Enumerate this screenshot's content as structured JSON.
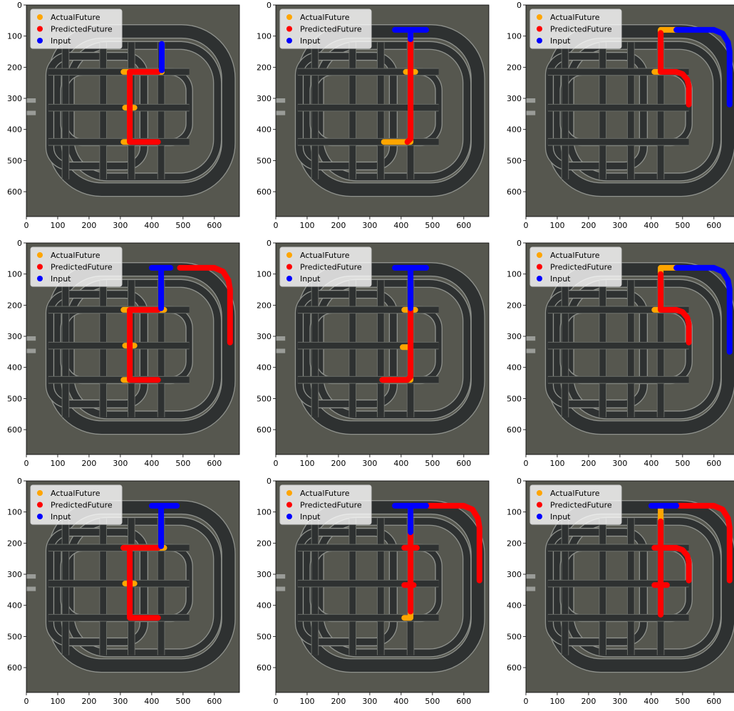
{
  "chart_data": [
    {
      "type": "line",
      "legend": "upper left",
      "xlim": [
        0,
        680
      ],
      "ylim": [
        680,
        0
      ],
      "xticks": [
        0,
        100,
        200,
        300,
        400,
        500,
        600
      ],
      "yticks": [
        0,
        100,
        200,
        300,
        400,
        500,
        600
      ],
      "series": [
        {
          "name": "ActualFuture",
          "color": "#ffa500",
          "x": [
            432,
            310,
            null,
            330,
            330,
            310,
            null,
            315,
            345
          ],
          "y": [
            215,
            215,
            null,
            215,
            440,
            440,
            null,
            330,
            330
          ]
        },
        {
          "name": "PredictedFuture",
          "color": "#ff0000",
          "x": [
            420,
            330,
            330,
            420
          ],
          "y": [
            215,
            215,
            440,
            440
          ]
        },
        {
          "name": "Input",
          "color": "#0000ff",
          "x": [
            432,
            432
          ],
          "y": [
            125,
            210
          ]
        }
      ]
    },
    {
      "type": "line",
      "legend": "upper left",
      "xlim": [
        0,
        680
      ],
      "ylim": [
        680,
        0
      ],
      "xticks": [
        0,
        100,
        200,
        300,
        400,
        500,
        600
      ],
      "yticks": [
        0,
        100,
        200,
        300,
        400,
        500,
        600
      ],
      "series": [
        {
          "name": "ActualFuture",
          "color": "#ffa500",
          "x": [
            430,
            430,
            345,
            null,
            415,
            445
          ],
          "y": [
            80,
            440,
            440,
            null,
            215,
            215
          ]
        },
        {
          "name": "PredictedFuture",
          "color": "#ff0000",
          "x": [
            430,
            430,
            420
          ],
          "y": [
            110,
            430,
            440
          ]
        },
        {
          "name": "Input",
          "color": "#0000ff",
          "x": [
            380,
            480,
            null,
            430,
            430
          ],
          "y": [
            80,
            80,
            null,
            80,
            110
          ]
        }
      ]
    },
    {
      "type": "line",
      "legend": "upper left",
      "xlim": [
        0,
        680
      ],
      "ylim": [
        680,
        0
      ],
      "xticks": [
        0,
        100,
        200,
        300,
        400,
        500,
        600
      ],
      "yticks": [
        0,
        100,
        200,
        300,
        400,
        500,
        600
      ],
      "series": [
        {
          "name": "ActualFuture",
          "color": "#ffa500",
          "x": [
            430,
            480,
            null,
            430,
            430,
            410
          ],
          "y": [
            80,
            80,
            null,
            80,
            215,
            215
          ]
        },
        {
          "name": "PredictedFuture",
          "color": "#ff0000",
          "x": [
            430,
            430,
            480,
            500,
            515,
            520,
            520
          ],
          "y": [
            90,
            215,
            215,
            222,
            240,
            260,
            320
          ]
        },
        {
          "name": "Input",
          "color": "#0000ff",
          "x": [
            480,
            600,
            628,
            645,
            650,
            650
          ],
          "y": [
            80,
            80,
            92,
            120,
            150,
            320
          ]
        }
      ]
    },
    {
      "type": "line",
      "legend": "upper left",
      "xlim": [
        0,
        680
      ],
      "ylim": [
        680,
        0
      ],
      "xticks": [
        0,
        100,
        200,
        300,
        400,
        500,
        600
      ],
      "yticks": [
        0,
        100,
        200,
        300,
        400,
        500,
        600
      ],
      "series": [
        {
          "name": "ActualFuture",
          "color": "#ffa500",
          "x": [
            440,
            310,
            null,
            330,
            330,
            310,
            null,
            315,
            345
          ],
          "y": [
            215,
            215,
            null,
            215,
            440,
            440,
            null,
            330,
            330
          ]
        },
        {
          "name": "PredictedFuture",
          "color": "#ff0000",
          "x": [
            490,
            600,
            628,
            645,
            650,
            650,
            null,
            420,
            330,
            330,
            420
          ],
          "y": [
            80,
            80,
            92,
            120,
            150,
            320,
            null,
            215,
            215,
            440,
            440
          ]
        },
        {
          "name": "Input",
          "color": "#0000ff",
          "x": [
            400,
            460,
            null,
            430,
            430
          ],
          "y": [
            80,
            80,
            null,
            80,
            210
          ]
        }
      ]
    },
    {
      "type": "line",
      "legend": "upper left",
      "xlim": [
        0,
        680
      ],
      "ylim": [
        680,
        0
      ],
      "xticks": [
        0,
        100,
        200,
        300,
        400,
        500,
        600
      ],
      "yticks": [
        0,
        100,
        200,
        300,
        400,
        500,
        600
      ],
      "series": [
        {
          "name": "ActualFuture",
          "color": "#ffa500",
          "x": [
            430,
            430,
            340,
            null,
            410,
            445,
            null,
            405,
            420
          ],
          "y": [
            215,
            440,
            440,
            null,
            215,
            215,
            null,
            335,
            335
          ]
        },
        {
          "name": "PredictedFuture",
          "color": "#ff0000",
          "x": [
            430,
            430,
            420,
            340
          ],
          "y": [
            215,
            430,
            440,
            440
          ]
        },
        {
          "name": "Input",
          "color": "#0000ff",
          "x": [
            380,
            480,
            null,
            430,
            430
          ],
          "y": [
            80,
            80,
            null,
            80,
            210
          ]
        }
      ]
    },
    {
      "type": "line",
      "legend": "upper left",
      "xlim": [
        0,
        680
      ],
      "ylim": [
        680,
        0
      ],
      "xticks": [
        0,
        100,
        200,
        300,
        400,
        500,
        600
      ],
      "yticks": [
        0,
        100,
        200,
        300,
        400,
        500,
        600
      ],
      "series": [
        {
          "name": "ActualFuture",
          "color": "#ffa500",
          "x": [
            430,
            480,
            null,
            430,
            430,
            410
          ],
          "y": [
            80,
            80,
            null,
            80,
            215,
            215
          ]
        },
        {
          "name": "PredictedFuture",
          "color": "#ff0000",
          "x": [
            430,
            430,
            480,
            500,
            515,
            520,
            520
          ],
          "y": [
            100,
            215,
            215,
            222,
            240,
            260,
            320
          ]
        },
        {
          "name": "Input",
          "color": "#0000ff",
          "x": [
            480,
            600,
            628,
            645,
            650,
            650
          ],
          "y": [
            80,
            80,
            92,
            120,
            150,
            350
          ]
        }
      ]
    },
    {
      "type": "line",
      "legend": "upper left",
      "xlim": [
        0,
        680
      ],
      "ylim": [
        680,
        0
      ],
      "xticks": [
        0,
        100,
        200,
        300,
        400,
        500,
        600
      ],
      "yticks": [
        0,
        100,
        200,
        300,
        400,
        500,
        600
      ],
      "series": [
        {
          "name": "ActualFuture",
          "color": "#ffa500",
          "x": [
            440,
            310,
            null,
            315,
            345
          ],
          "y": [
            215,
            215,
            null,
            330,
            330
          ]
        },
        {
          "name": "PredictedFuture",
          "color": "#ff0000",
          "x": [
            420,
            310,
            null,
            330,
            330,
            420
          ],
          "y": [
            215,
            215,
            null,
            215,
            440,
            440
          ]
        },
        {
          "name": "Input",
          "color": "#0000ff",
          "x": [
            400,
            480,
            null,
            430,
            430
          ],
          "y": [
            80,
            80,
            null,
            80,
            210
          ]
        }
      ]
    },
    {
      "type": "line",
      "legend": "upper left",
      "xlim": [
        0,
        680
      ],
      "ylim": [
        680,
        0
      ],
      "xticks": [
        0,
        100,
        200,
        300,
        400,
        500,
        600
      ],
      "yticks": [
        0,
        100,
        200,
        300,
        400,
        500,
        600
      ],
      "series": [
        {
          "name": "ActualFuture",
          "color": "#ffa500",
          "x": [
            430,
            430,
            410
          ],
          "y": [
            80,
            440,
            440
          ]
        },
        {
          "name": "PredictedFuture",
          "color": "#ff0000",
          "x": [
            490,
            600,
            628,
            645,
            650,
            650,
            null,
            430,
            430,
            null,
            410,
            450,
            null,
            410,
            440
          ],
          "y": [
            80,
            80,
            92,
            120,
            150,
            320,
            null,
            170,
            420,
            null,
            215,
            215,
            null,
            335,
            335
          ]
        },
        {
          "name": "Input",
          "color": "#0000ff",
          "x": [
            380,
            480,
            null,
            430,
            430
          ],
          "y": [
            80,
            80,
            null,
            80,
            165
          ]
        }
      ]
    },
    {
      "type": "line",
      "legend": "upper left",
      "xlim": [
        0,
        680
      ],
      "ylim": [
        680,
        0
      ],
      "xticks": [
        0,
        100,
        200,
        300,
        400,
        500,
        600
      ],
      "yticks": [
        0,
        100,
        200,
        300,
        400,
        500,
        600
      ],
      "series": [
        {
          "name": "ActualFuture",
          "color": "#ffa500",
          "x": [
            430,
            430
          ],
          "y": [
            80,
            215
          ]
        },
        {
          "name": "PredictedFuture",
          "color": "#ff0000",
          "x": [
            490,
            600,
            628,
            645,
            650,
            650,
            null,
            430,
            430,
            null,
            410,
            480,
            500,
            515,
            520,
            520,
            null,
            410,
            450
          ],
          "y": [
            80,
            80,
            92,
            120,
            150,
            320,
            null,
            130,
            430,
            null,
            215,
            215,
            222,
            240,
            260,
            320,
            null,
            335,
            335
          ]
        },
        {
          "name": "Input",
          "color": "#0000ff",
          "x": [
            400,
            480
          ],
          "y": [
            80,
            80
          ]
        }
      ]
    }
  ]
}
